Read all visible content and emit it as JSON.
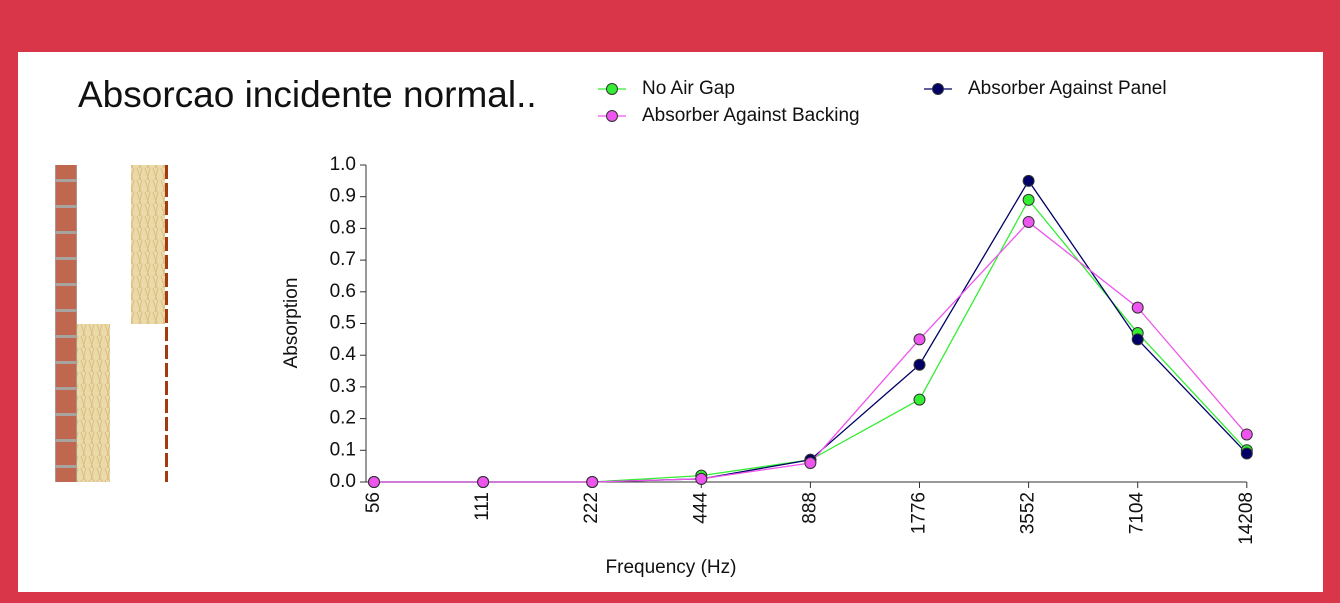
{
  "chart_data": {
    "type": "line",
    "title": "Absorcao incidente normal..",
    "x_label": "Frequency (Hz)",
    "y_label": "Absorption",
    "categories": [
      "56",
      "111",
      "222",
      "444",
      "888",
      "1776",
      "3552",
      "7104",
      "14208"
    ],
    "series": [
      {
        "name": "No Air Gap",
        "color": "#33ee33",
        "values": [
          0,
          0,
          0,
          0.02,
          0.07,
          0.26,
          0.89,
          0.47,
          0.1
        ]
      },
      {
        "name": "Absorber Against Panel",
        "color": "#000066",
        "values": [
          0,
          0,
          0,
          0.01,
          0.07,
          0.37,
          0.95,
          0.45,
          0.09
        ]
      },
      {
        "name": "Absorber Against Backing",
        "color": "#ee55ee",
        "values": [
          0,
          0,
          0,
          0.01,
          0.06,
          0.45,
          0.82,
          0.55,
          0.15
        ]
      }
    ],
    "ylim": [
      0,
      1
    ],
    "yticks": [
      {
        "value": 0,
        "label": "0.0"
      },
      0.1,
      0.2,
      0.3,
      0.4,
      0.5,
      0.6,
      0.7,
      0.8,
      0.9,
      {
        "value": 1,
        "label": "1.0"
      }
    ]
  }
}
